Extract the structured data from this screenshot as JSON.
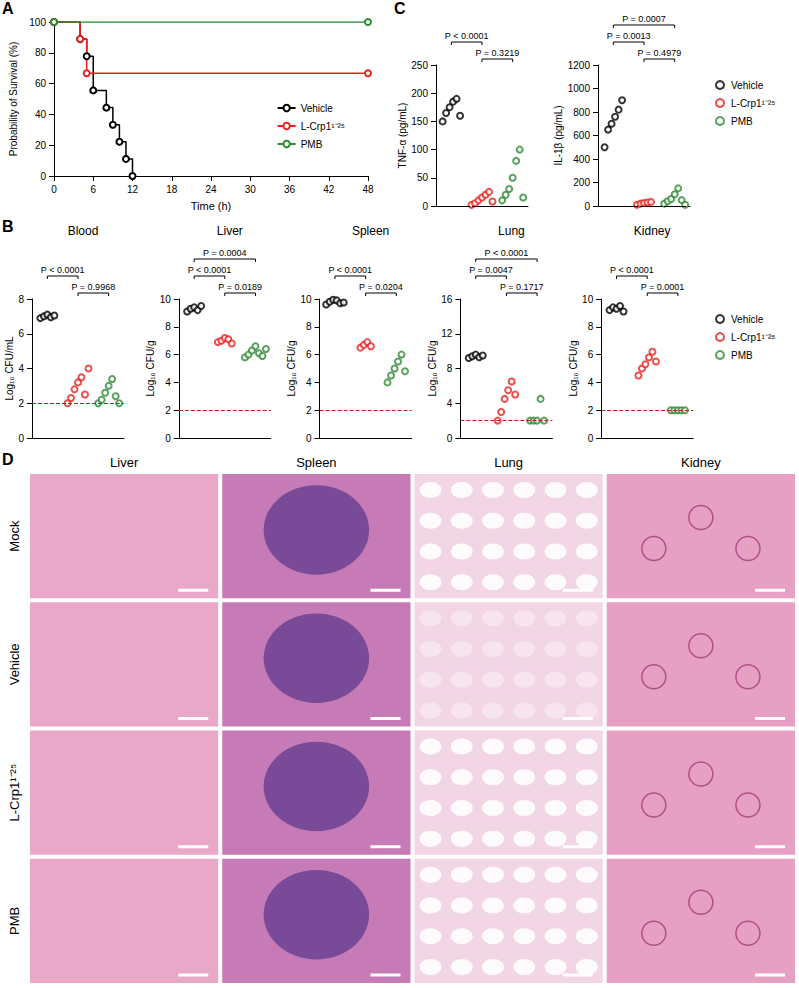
{
  "chart_data": [
    {
      "panel": "A",
      "type": "line",
      "line_style": "step",
      "marker": "open circle",
      "grid": false,
      "legend": "right",
      "x_label": "Time (h)",
      "y_label": "Probability of Survival (%)",
      "xlim": [
        0,
        48
      ],
      "xticks": [
        0,
        6,
        12,
        18,
        24,
        30,
        36,
        42,
        48
      ],
      "ylim": [
        0,
        100
      ],
      "yticks": [
        0,
        20,
        40,
        60,
        80,
        100
      ],
      "series": [
        {
          "name": "Vehicle",
          "color": "#000000",
          "x": [
            0,
            4,
            5,
            6,
            8,
            9,
            10,
            11,
            12
          ],
          "values": [
            100,
            88.9,
            77.8,
            55.6,
            44.4,
            33.3,
            22.2,
            11.1,
            0
          ]
        },
        {
          "name": "L-Crp1¹⁻²⁵",
          "color": "#e8231f",
          "x": [
            0,
            4,
            5,
            48
          ],
          "values": [
            100,
            88.9,
            66.7,
            66.7
          ]
        },
        {
          "name": "PMB",
          "color": "#2e8b34",
          "x": [
            0,
            48
          ],
          "values": [
            100,
            100
          ]
        }
      ]
    },
    {
      "panel": "B",
      "type": "scatter",
      "marker": "open circle",
      "tick_labels": "y",
      "title": "Blood",
      "y_label": "Log₁₀ CFU/mL",
      "ylim": [
        0,
        8
      ],
      "yticks": [
        0,
        2,
        4,
        6,
        8
      ],
      "reference_line": {
        "value": 2,
        "color": "#b22222",
        "line_style": "dashed"
      },
      "series": [
        {
          "name": "Vehicle",
          "color": "#000000",
          "values": [
            6.9,
            7.0,
            7.1,
            6.95,
            7.05
          ]
        },
        {
          "name": "L-Crp1¹⁻²⁵",
          "color": "#e8231f",
          "values": [
            2.0,
            2.3,
            2.8,
            3.2,
            3.5,
            2.5,
            4.0
          ]
        },
        {
          "name": "PMB",
          "color": "#2e8b34",
          "values": [
            2.0,
            2.2,
            2.6,
            3.0,
            3.4,
            2.4,
            2.0
          ]
        }
      ],
      "annotations": [
        {
          "text": "P = 0.9968",
          "from": "L-Crp1¹⁻²⁵",
          "to": "PMB"
        },
        {
          "text": "P < 0.0001",
          "from": "Vehicle",
          "to": "L-Crp1¹⁻²⁵"
        }
      ]
    },
    {
      "panel": "B",
      "type": "scatter",
      "marker": "open circle",
      "tick_labels": "y",
      "title": "Liver",
      "y_label": "Log₁₀ CFU/g",
      "ylim": [
        0,
        10
      ],
      "yticks": [
        0,
        2,
        4,
        6,
        8,
        10
      ],
      "reference_line": {
        "value": 2,
        "color": "#b22222",
        "line_style": "dashed"
      },
      "series": [
        {
          "name": "Vehicle",
          "color": "#000000",
          "values": [
            9.1,
            9.3,
            9.4,
            9.2,
            9.5
          ]
        },
        {
          "name": "L-Crp1¹⁻²⁵",
          "color": "#e8231f",
          "values": [
            6.9,
            7.0,
            7.2,
            7.1,
            6.8
          ]
        },
        {
          "name": "PMB",
          "color": "#2e8b34",
          "values": [
            5.8,
            6.0,
            6.3,
            6.6,
            6.1,
            5.9,
            6.4
          ]
        }
      ],
      "annotations": [
        {
          "text": "P = 0.0189",
          "from": "L-Crp1¹⁻²⁵",
          "to": "PMB"
        },
        {
          "text": "P < 0.0001",
          "from": "Vehicle",
          "to": "L-Crp1¹⁻²⁵"
        },
        {
          "text": "P = 0.0004",
          "from": "Vehicle",
          "to": "PMB"
        }
      ]
    },
    {
      "panel": "B",
      "type": "scatter",
      "marker": "open circle",
      "tick_labels": "y",
      "title": "Spleen",
      "y_label": "Log₁₀ CFU/g",
      "ylim": [
        0,
        10
      ],
      "yticks": [
        0,
        2,
        4,
        6,
        8,
        10
      ],
      "reference_line": {
        "value": 2,
        "color": "#b22222",
        "line_style": "dashed"
      },
      "series": [
        {
          "name": "Vehicle",
          "color": "#000000",
          "values": [
            9.6,
            9.8,
            9.95,
            9.9,
            9.7,
            9.75
          ]
        },
        {
          "name": "L-Crp1¹⁻²⁵",
          "color": "#e8231f",
          "values": [
            6.5,
            6.7,
            6.9,
            6.6
          ]
        },
        {
          "name": "PMB",
          "color": "#2e8b34",
          "values": [
            4.0,
            4.5,
            5.0,
            5.5,
            6.0,
            4.8
          ]
        }
      ],
      "annotations": [
        {
          "text": "P = 0.0204",
          "from": "L-Crp1¹⁻²⁵",
          "to": "PMB"
        },
        {
          "text": "P < 0.0001",
          "from": "Vehicle",
          "to": "L-Crp1¹⁻²⁵"
        }
      ]
    },
    {
      "panel": "B",
      "type": "scatter",
      "marker": "open circle",
      "tick_labels": "y",
      "title": "Lung",
      "y_label": "Log₁₀ CFU/g",
      "ylim": [
        0,
        16
      ],
      "yticks": [
        0,
        4,
        8,
        12,
        16
      ],
      "reference_line": {
        "value": 2,
        "color": "#b22222",
        "line_style": "dashed"
      },
      "series": [
        {
          "name": "Vehicle",
          "color": "#000000",
          "values": [
            9.2,
            9.4,
            9.6,
            9.3,
            9.5
          ]
        },
        {
          "name": "L-Crp1¹⁻²⁵",
          "color": "#e8231f",
          "values": [
            2.0,
            3.0,
            4.5,
            5.5,
            6.5,
            5.0
          ]
        },
        {
          "name": "PMB",
          "color": "#2e8b34",
          "values": [
            2.0,
            2.0,
            2.0,
            4.5,
            2.0
          ]
        }
      ],
      "annotations": [
        {
          "text": "P = 0.1717",
          "from": "L-Crp1¹⁻²⁵",
          "to": "PMB"
        },
        {
          "text": "P = 0.0047",
          "from": "Vehicle",
          "to": "L-Crp1¹⁻²⁵"
        },
        {
          "text": "P < 0.0001",
          "from": "Vehicle",
          "to": "PMB"
        }
      ]
    },
    {
      "panel": "B",
      "type": "scatter",
      "marker": "open circle",
      "tick_labels": "y",
      "title": "Kidney",
      "y_label": "Log₁₀ CFU/g",
      "legend": "right",
      "ylim": [
        0,
        10
      ],
      "yticks": [
        0,
        2,
        4,
        6,
        8,
        10
      ],
      "reference_line": {
        "value": 2,
        "color": "#b22222",
        "line_style": "dashed"
      },
      "series": [
        {
          "name": "Vehicle",
          "color": "#000000",
          "values": [
            9.2,
            9.4,
            9.3,
            9.5,
            9.1
          ]
        },
        {
          "name": "L-Crp1¹⁻²⁵",
          "color": "#e8231f",
          "values": [
            4.5,
            5.0,
            5.3,
            5.8,
            6.2,
            5.5
          ]
        },
        {
          "name": "PMB",
          "color": "#2e8b34",
          "values": [
            2.0,
            2.0,
            2.0,
            2.0,
            2.0
          ]
        }
      ],
      "annotations": [
        {
          "text": "P = 0.0001",
          "from": "L-Crp1¹⁻²⁵",
          "to": "PMB"
        },
        {
          "text": "P < 0.0001",
          "from": "Vehicle",
          "to": "L-Crp1¹⁻²⁵"
        }
      ]
    },
    {
      "panel": "C",
      "type": "scatter",
      "marker": "open circle",
      "tick_labels": "y",
      "y_label": "TNF-α (pg/mL)",
      "ylim": [
        0,
        250
      ],
      "yticks": [
        0,
        50,
        100,
        150,
        200,
        250
      ],
      "reference_line": {
        "value": 0,
        "color": "#000000",
        "line_style": "dashed"
      },
      "series": [
        {
          "name": "Vehicle",
          "color": "#000000",
          "values": [
            150,
            165,
            175,
            185,
            190,
            160
          ]
        },
        {
          "name": "L-Crp1¹⁻²⁵",
          "color": "#e8231f",
          "values": [
            2,
            5,
            10,
            15,
            20,
            25,
            8
          ]
        },
        {
          "name": "PMB",
          "color": "#2e8b34",
          "values": [
            10,
            20,
            30,
            50,
            80,
            100,
            15
          ]
        }
      ],
      "annotations": [
        {
          "text": "P = 0.3219",
          "from": "L-Crp1¹⁻²⁵",
          "to": "PMB"
        },
        {
          "text": "P < 0.0001",
          "from": "Vehicle",
          "to": "L-Crp1¹⁻²⁵"
        }
      ]
    },
    {
      "panel": "C",
      "type": "scatter",
      "marker": "open circle",
      "tick_labels": "y",
      "y_label": "IL-1β (pg/mL)",
      "legend": "right",
      "ylim": [
        0,
        1200
      ],
      "yticks": [
        0,
        200,
        400,
        600,
        800,
        1000,
        1200
      ],
      "reference_line": {
        "value": 0,
        "color": "#000000",
        "line_style": "dashed"
      },
      "series": [
        {
          "name": "Vehicle",
          "color": "#000000",
          "values": [
            500,
            650,
            700,
            760,
            820,
            900
          ]
        },
        {
          "name": "L-Crp1¹⁻²⁵",
          "color": "#e8231f",
          "values": [
            10,
            20,
            25,
            30,
            35
          ]
        },
        {
          "name": "PMB",
          "color": "#2e8b34",
          "values": [
            20,
            40,
            60,
            100,
            150,
            50,
            10
          ]
        }
      ],
      "annotations": [
        {
          "text": "P = 0.4979",
          "from": "L-Crp1¹⁻²⁵",
          "to": "PMB"
        },
        {
          "text": "P = 0.0013",
          "from": "Vehicle",
          "to": "L-Crp1¹⁻²⁵"
        },
        {
          "text": "P = 0.0007",
          "from": "Vehicle",
          "to": "PMB"
        }
      ]
    }
  ],
  "panel_d": {
    "panel": "D",
    "columns": [
      "Liver",
      "Spleen",
      "Lung",
      "Kidney"
    ],
    "rows": [
      "Mock",
      "Vehicle",
      "L-Crp1¹⁻²⁵",
      "PMB"
    ]
  }
}
